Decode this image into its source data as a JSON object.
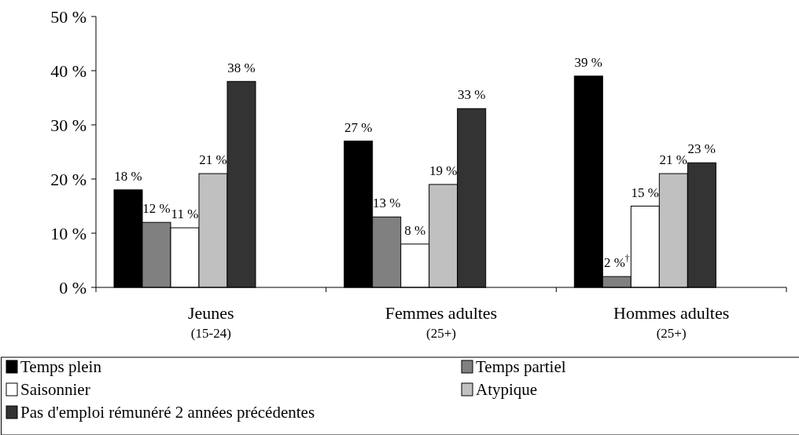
{
  "chart_data": {
    "type": "bar",
    "categories": [
      "Jeunes\n(15-24)",
      "Femmes adultes\n(25+)",
      "Hommes adultes\n(25+)"
    ],
    "series": [
      {
        "name": "Temps plein",
        "color": "#000000",
        "values": [
          18,
          27,
          39
        ],
        "value_labels": [
          "18 %",
          "27 %",
          "39 %"
        ]
      },
      {
        "name": "Temps partiel",
        "color": "#808080",
        "values": [
          12,
          13,
          2
        ],
        "value_labels": [
          "12 %",
          "13 %",
          "2 %$^{†}$"
        ]
      },
      {
        "name": "Saisonnier",
        "color": "#ffffff",
        "values": [
          11,
          8,
          15
        ],
        "value_labels": [
          "11 %",
          "8 %",
          "15 %"
        ]
      },
      {
        "name": "Atypique",
        "color": "#c0c0c0",
        "values": [
          21,
          19,
          21
        ],
        "value_labels": [
          "21 %",
          "19 %",
          "21 %"
        ]
      },
      {
        "name": "Pas d'emploi rémunéré 2 années précédentes",
        "color": "#333333",
        "values": [
          38,
          33,
          23
        ],
        "value_labels": [
          "38 %",
          "33 %",
          "23 %"
        ]
      }
    ],
    "ylim": [
      0,
      50
    ],
    "yticks": [
      {
        "value": 0,
        "label": "0 %"
      },
      {
        "value": 10,
        "label": "10 %"
      },
      {
        "value": 20,
        "label": "20 %"
      },
      {
        "value": 30,
        "label": "30 %"
      },
      {
        "value": 40,
        "label": "40 %"
      },
      {
        "value": 50,
        "label": "50 %"
      }
    ],
    "grid": false,
    "legend": "bottom"
  }
}
